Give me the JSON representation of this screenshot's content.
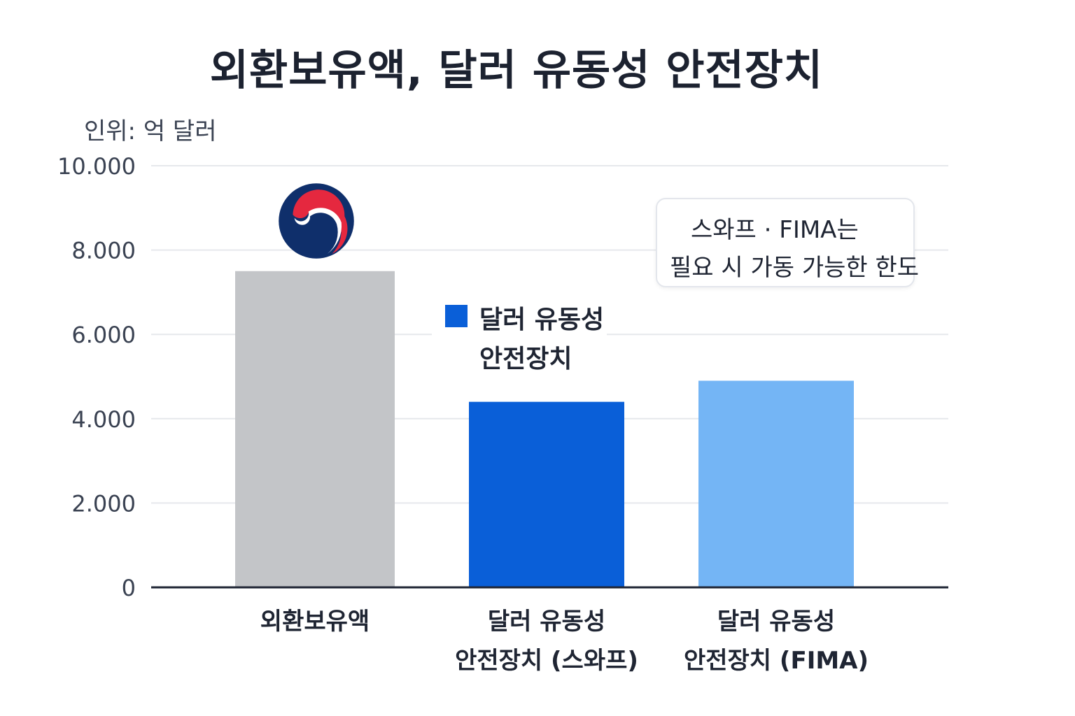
{
  "chart_data": {
    "type": "bar",
    "title": "외환보유액, 달러 유동성 안전장치",
    "unit_label": "인위: 억 달러",
    "ylim": [
      0,
      10000
    ],
    "yticks": [
      {
        "value": 0,
        "label": "0"
      },
      {
        "value": 2000,
        "label": "2.000"
      },
      {
        "value": 4000,
        "label": "4.000"
      },
      {
        "value": 6000,
        "label": "6.000"
      },
      {
        "value": 8000,
        "label": "8.000"
      },
      {
        "value": 10000,
        "label": "10.000"
      }
    ],
    "grid": true,
    "bars": [
      {
        "category_lines": [
          "외환보유액"
        ],
        "value": 7500,
        "color": "#c3c5c8"
      },
      {
        "category_lines": [
          "달러 유동성",
          "안전장치 (스와프)"
        ],
        "value": 4400,
        "color": "#0a5fd8"
      },
      {
        "category_lines": [
          "달러 유동성",
          "안전장치 (FIMA)"
        ],
        "value": 4900,
        "color": "#74b5f5"
      }
    ],
    "legend": {
      "lines": [
        "달러 유동성",
        "안전장치"
      ],
      "color": "#0a5fd8"
    },
    "annotation": {
      "lines": [
        "스와프 · FIMA는",
        "필요 시 가동 가능한 한도"
      ]
    },
    "emblem": "korea-government-taegeuk-emblem",
    "colors": {
      "emblem_blue": "#0f2f6b",
      "emblem_red": "#e5283f",
      "axis": "#1e2433",
      "grid": "#e6e8ec"
    }
  }
}
